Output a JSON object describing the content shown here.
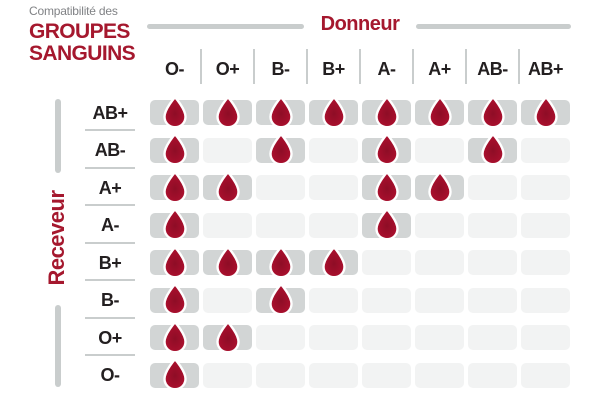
{
  "title": {
    "kicker": "Compatibilité des",
    "line1": "GROUPES",
    "line2": "SANGUINS"
  },
  "axes": {
    "donor": "Donneur",
    "receiver": "Receveur"
  },
  "donors": [
    "O-",
    "O+",
    "B-",
    "B+",
    "A-",
    "A+",
    "AB-",
    "AB+"
  ],
  "receivers": [
    "AB+",
    "AB-",
    "A+",
    "A-",
    "B+",
    "B-",
    "O+",
    "O-"
  ],
  "compatibility": [
    [
      1,
      1,
      1,
      1,
      1,
      1,
      1,
      1
    ],
    [
      1,
      0,
      1,
      0,
      1,
      0,
      1,
      0
    ],
    [
      1,
      1,
      0,
      0,
      1,
      1,
      0,
      0
    ],
    [
      1,
      0,
      0,
      0,
      1,
      0,
      0,
      0
    ],
    [
      1,
      1,
      1,
      1,
      0,
      0,
      0,
      0
    ],
    [
      1,
      0,
      1,
      0,
      0,
      0,
      0,
      0
    ],
    [
      1,
      1,
      0,
      0,
      0,
      0,
      0,
      0
    ],
    [
      1,
      0,
      0,
      0,
      0,
      0,
      0,
      0
    ]
  ],
  "icons": {
    "compatible": "blood-drop-icon"
  },
  "colors": {
    "accent_red": "#A5182E",
    "drop_red": "#A50F2C",
    "drop_red_dark": "#8E0D26",
    "drop_red_light": "#B91335",
    "drop_stroke": "#FFFFFF",
    "cell_gray": "#D2D5D5",
    "cell_light": "#F2F3F3",
    "line_gray": "#C9CDCD",
    "header_text": "#231F20",
    "kicker_gray": "#808285",
    "background": "#FFFFFF"
  },
  "chart_data": {
    "type": "heatmap",
    "title": "Compatibilité des GROUPES SANGUINS",
    "x_axis_label": "Donneur",
    "y_axis_label": "Receveur",
    "columns": [
      "O-",
      "O+",
      "B-",
      "B+",
      "A-",
      "A+",
      "AB-",
      "AB+"
    ],
    "rows": [
      "AB+",
      "AB-",
      "A+",
      "A-",
      "B+",
      "B-",
      "O+",
      "O-"
    ],
    "values": [
      [
        1,
        1,
        1,
        1,
        1,
        1,
        1,
        1
      ],
      [
        1,
        0,
        1,
        0,
        1,
        0,
        1,
        0
      ],
      [
        1,
        1,
        0,
        0,
        1,
        1,
        0,
        0
      ],
      [
        1,
        0,
        0,
        0,
        1,
        0,
        0,
        0
      ],
      [
        1,
        1,
        1,
        1,
        0,
        0,
        0,
        0
      ],
      [
        1,
        0,
        1,
        0,
        0,
        0,
        0,
        0
      ],
      [
        1,
        1,
        0,
        0,
        0,
        0,
        0,
        0
      ],
      [
        1,
        0,
        0,
        0,
        0,
        0,
        0,
        0
      ]
    ],
    "value_meaning": "1 = compatible (goutte de sang affichée), 0 = incompatible (case vide)",
    "legend_position": "none",
    "grid": false
  }
}
